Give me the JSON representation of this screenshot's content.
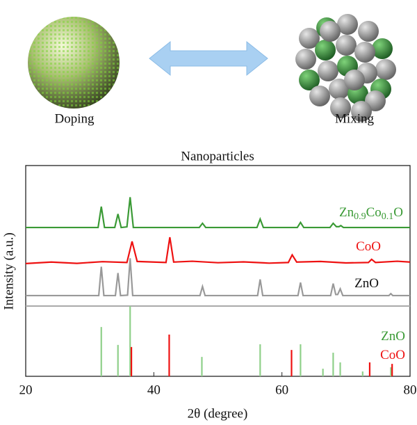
{
  "diagram": {
    "left_label": "Doping",
    "right_label": "Mixing"
  },
  "chart_data": {
    "type": "line",
    "title": "Nanoparticles",
    "x_label": "2θ (degree)",
    "y_label": "Intensity (a.u.)",
    "xlim": [
      20,
      80
    ],
    "xticks": [
      20,
      40,
      60,
      80
    ],
    "ylim": [
      0,
      100
    ],
    "series": [
      {
        "name": "Zn0.9Co0.1O",
        "color": "#3a9a35",
        "kind": "line",
        "x": [
          20,
          31.3,
          31.8,
          32.3,
          33.9,
          34.4,
          34.9,
          35.8,
          36.3,
          36.8,
          47.1,
          47.6,
          48.1,
          56.1,
          56.6,
          57.1,
          62.4,
          62.9,
          63.4,
          67.5,
          68,
          68.5,
          68.9,
          69.2,
          69.6,
          80
        ],
        "values": [
          70.6,
          70.6,
          80.5,
          70.6,
          70.6,
          77,
          70.6,
          70.9,
          85,
          70.6,
          70.6,
          72.6,
          70.6,
          70.6,
          74.6,
          70.6,
          70.6,
          73,
          70.6,
          70.6,
          72.6,
          71,
          71,
          71.5,
          70.6,
          70.6
        ]
      },
      {
        "name": "CoO",
        "color": "#ee1111",
        "kind": "line",
        "x": [
          20,
          24,
          28,
          32,
          35.8,
          36.6,
          37.4,
          40,
          41.9,
          42.5,
          43.1,
          46,
          50,
          54,
          58,
          61,
          61.6,
          62.3,
          66,
          70,
          73.5,
          74,
          74.6,
          78,
          80
        ],
        "values": [
          53.5,
          54.2,
          53.6,
          54.4,
          54,
          64,
          54.5,
          54.2,
          54,
          66,
          54.2,
          54.6,
          53.9,
          54.3,
          53.7,
          54,
          57.6,
          54.2,
          54.5,
          53.8,
          54,
          55.5,
          54,
          54.6,
          54.2
        ]
      },
      {
        "name": "ZnO",
        "color": "#999999",
        "kind": "line",
        "x": [
          20,
          31.4,
          31.8,
          32.2,
          34,
          34.4,
          34.8,
          35.9,
          36.3,
          36.7,
          47.2,
          47.6,
          48,
          56.2,
          56.6,
          57,
          62.5,
          62.9,
          63.3,
          67.6,
          68,
          68.4,
          68.7,
          69.1,
          69.5,
          76.7,
          77,
          77.3,
          80
        ],
        "values": [
          38.3,
          38.3,
          52,
          38.3,
          38.3,
          49,
          38.3,
          38.5,
          56,
          38.3,
          38.3,
          42.6,
          38.3,
          38.3,
          46,
          38.3,
          38.3,
          44.5,
          38.3,
          38.3,
          44,
          38.8,
          38.8,
          41.5,
          38.3,
          38.3,
          39.2,
          38.3,
          38.3
        ]
      },
      {
        "name": "ZnO",
        "color": "#8fd08a",
        "kind": "stick",
        "x": [
          31.8,
          34.4,
          36.3,
          47.5,
          56.6,
          62.9,
          66.4,
          68,
          69.1,
          72.6,
          77
        ],
        "values": [
          23.4,
          14.9,
          33.3,
          9.2,
          15.2,
          15.2,
          3.6,
          11.2,
          6.6,
          2.3,
          4.3
        ]
      },
      {
        "name": "CoO",
        "color": "#ee1111",
        "kind": "stick",
        "x": [
          36.5,
          42.4,
          61.5,
          73.7,
          77.2
        ],
        "values": [
          13.9,
          19.8,
          12.5,
          6.6,
          5.9
        ]
      }
    ]
  }
}
